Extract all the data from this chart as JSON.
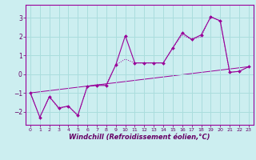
{
  "title": "",
  "xlabel": "Windchill (Refroidissement éolien,°C)",
  "ylabel": "",
  "bg_color": "#cceef0",
  "line_color": "#990099",
  "grid_color": "#aadddd",
  "xlim": [
    -0.5,
    23.5
  ],
  "ylim": [
    -2.7,
    3.7
  ],
  "xticks": [
    0,
    1,
    2,
    3,
    4,
    5,
    6,
    7,
    8,
    9,
    10,
    11,
    12,
    13,
    14,
    15,
    16,
    17,
    18,
    19,
    20,
    21,
    22,
    23
  ],
  "yticks": [
    -2,
    -1,
    0,
    1,
    2,
    3
  ],
  "line1_x": [
    0,
    1,
    2,
    3,
    4,
    5,
    6,
    7,
    8,
    9,
    10,
    11,
    12,
    13,
    14,
    15,
    16,
    17,
    18,
    19,
    20,
    21,
    22,
    23
  ],
  "line1_y": [
    -1.0,
    -2.3,
    -1.2,
    -1.8,
    -1.7,
    -2.2,
    -0.65,
    -0.6,
    -0.6,
    0.5,
    2.05,
    0.6,
    0.6,
    0.6,
    0.6,
    1.4,
    2.2,
    1.85,
    2.1,
    3.05,
    2.85,
    0.1,
    0.15,
    0.4
  ],
  "line2_x": [
    0,
    1,
    2,
    3,
    4,
    5,
    6,
    7,
    8,
    9,
    10,
    11,
    12,
    13,
    14,
    15,
    16,
    17,
    18,
    19,
    20,
    21,
    22,
    23
  ],
  "line2_y": [
    -1.0,
    -2.3,
    -1.2,
    -1.85,
    -1.7,
    -2.2,
    -0.65,
    -0.55,
    -0.55,
    0.5,
    0.8,
    0.6,
    0.6,
    0.6,
    0.6,
    1.4,
    2.1,
    1.85,
    2.0,
    3.1,
    2.8,
    0.1,
    0.15,
    0.4
  ],
  "line3_x": [
    0,
    23
  ],
  "line3_y": [
    -1.0,
    0.4
  ]
}
